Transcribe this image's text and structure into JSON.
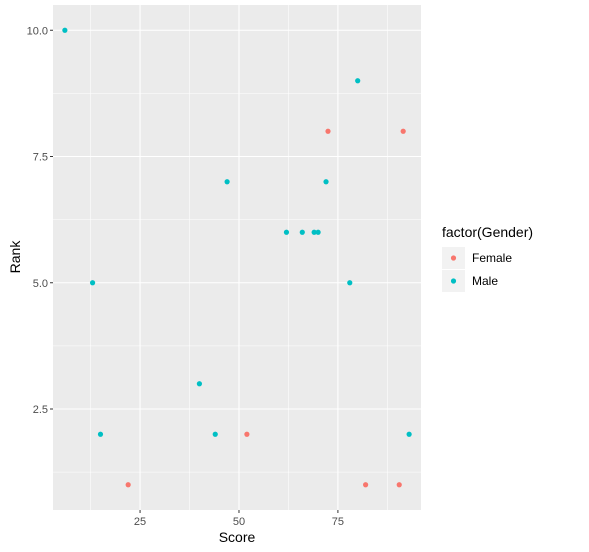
{
  "chart_data": {
    "type": "scatter",
    "xlabel": "Score",
    "ylabel": "Rank",
    "xlim": [
      3,
      96
    ],
    "ylim": [
      0.5,
      10.5
    ],
    "x_ticks": [
      25,
      50,
      75
    ],
    "x_tick_labels": [
      "25",
      "50",
      "75"
    ],
    "y_ticks": [
      2.5,
      5.0,
      7.5,
      10.0
    ],
    "y_tick_labels": [
      "2.5",
      "5.0",
      "7.5",
      "10.0"
    ],
    "grid": true,
    "legend": {
      "title": "factor(Gender)",
      "position": "right"
    },
    "series": [
      {
        "name": "Female",
        "color": "#F8766D",
        "points": [
          {
            "x": 22,
            "y": 1
          },
          {
            "x": 52,
            "y": 2
          },
          {
            "x": 72.5,
            "y": 8
          },
          {
            "x": 82,
            "y": 1
          },
          {
            "x": 90.5,
            "y": 1
          },
          {
            "x": 91.5,
            "y": 8
          }
        ]
      },
      {
        "name": "Male",
        "color": "#00BFC4",
        "points": [
          {
            "x": 6,
            "y": 10
          },
          {
            "x": 13,
            "y": 5
          },
          {
            "x": 15,
            "y": 2
          },
          {
            "x": 40,
            "y": 3
          },
          {
            "x": 44,
            "y": 2
          },
          {
            "x": 47,
            "y": 7
          },
          {
            "x": 62,
            "y": 6
          },
          {
            "x": 66,
            "y": 6
          },
          {
            "x": 69,
            "y": 6
          },
          {
            "x": 70,
            "y": 6
          },
          {
            "x": 72,
            "y": 7
          },
          {
            "x": 78,
            "y": 5
          },
          {
            "x": 80,
            "y": 9
          },
          {
            "x": 93,
            "y": 2
          }
        ]
      }
    ]
  }
}
